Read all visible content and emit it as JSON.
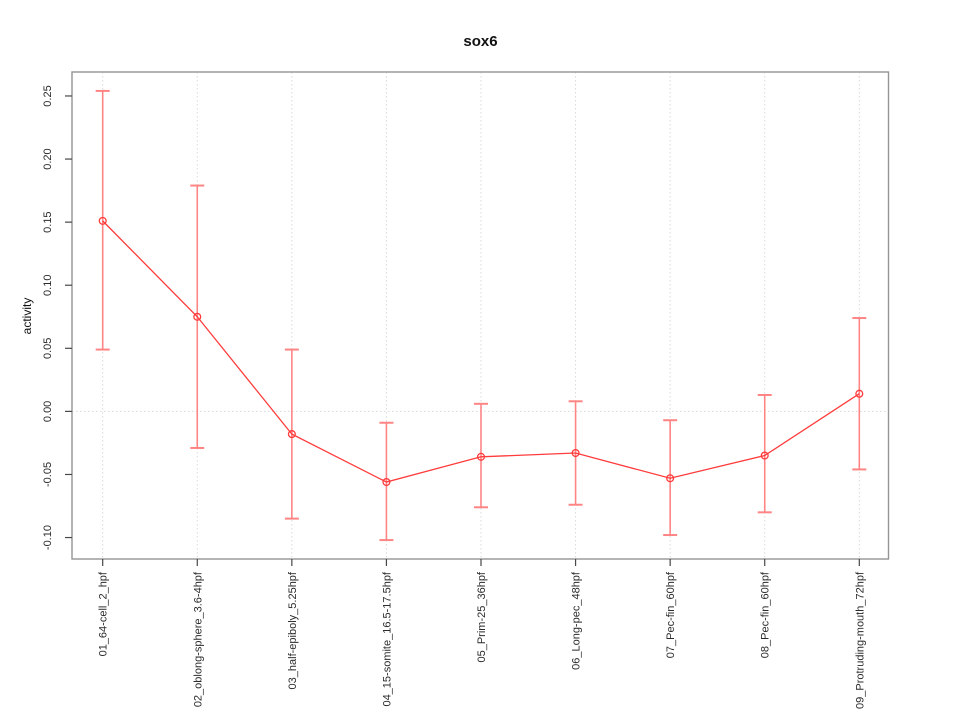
{
  "chart_data": {
    "type": "line",
    "title": "sox6",
    "ylabel": "activity",
    "xlabel": "",
    "legend": null,
    "grid": {
      "vertical_dotted_at_each_category": true,
      "horizontal_dotted_at_zero": true
    },
    "categories": [
      "01_64-cell_2_hpf",
      "02_oblong-sphere_3.6-4hpf",
      "03_half-epiboly_5.25hpf",
      "04_15-somite_16.5-17.5hpf",
      "05_Prim-25_36hpf",
      "06_Long-pec_48hpf",
      "07_Pec-fin_60hpf",
      "08_Pec-fin_60hpf",
      "09_Protruding-mouth_72hpf"
    ],
    "values": [
      0.151,
      0.075,
      -0.018,
      -0.056,
      -0.036,
      -0.033,
      -0.053,
      -0.035,
      0.014
    ],
    "error_upper": [
      0.254,
      0.179,
      0.049,
      -0.009,
      0.006,
      0.008,
      -0.007,
      0.013,
      0.074
    ],
    "error_lower": [
      0.049,
      -0.029,
      -0.085,
      -0.102,
      -0.076,
      -0.074,
      -0.098,
      -0.08,
      -0.046
    ],
    "y_ticks": [
      -0.1,
      -0.05,
      0.0,
      0.05,
      0.1,
      0.15,
      0.2,
      0.25
    ],
    "y_tick_labels": [
      "-0.10",
      "-0.05",
      "0.00",
      "0.05",
      "0.10",
      "0.15",
      "0.20",
      "0.25"
    ],
    "ylim": [
      -0.117,
      0.269
    ],
    "colors": {
      "series": "#ff3b3b",
      "error_bar": "#ff8585",
      "grid": "#d9d9d9",
      "box": "#959595",
      "tick": "#474747",
      "text": "#2b2b2b"
    }
  }
}
